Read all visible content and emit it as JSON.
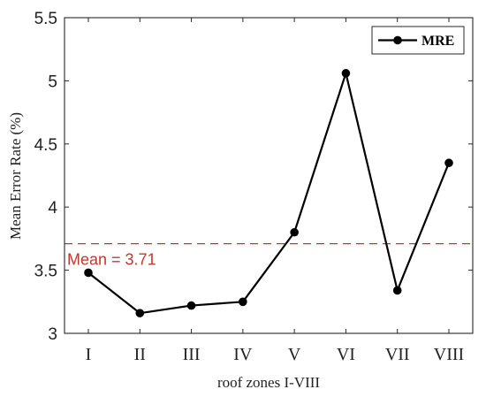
{
  "chart_data": {
    "type": "line",
    "categories": [
      "I",
      "II",
      "III",
      "IV",
      "V",
      "VI",
      "VII",
      "VIII"
    ],
    "series": [
      {
        "name": "MRE",
        "values": [
          3.48,
          3.16,
          3.22,
          3.25,
          3.8,
          5.06,
          3.34,
          4.35
        ],
        "color": "#000000"
      }
    ],
    "xlabel": "roof zones I-VIII",
    "ylabel": "Mean Error Rate (%)",
    "ylim": [
      3,
      5.5
    ],
    "yticks": [
      3,
      3.5,
      4,
      4.5,
      5,
      5.5
    ],
    "ytick_labels": [
      "3",
      "3.5",
      "4",
      "4.5",
      "5",
      "5.5"
    ],
    "reference_line": {
      "value": 3.71,
      "label": "Mean = 3.71",
      "color": "#c0392b",
      "style": "dashed"
    },
    "legend": {
      "position": "top-right",
      "entries": [
        "MRE"
      ]
    },
    "grid": false
  }
}
